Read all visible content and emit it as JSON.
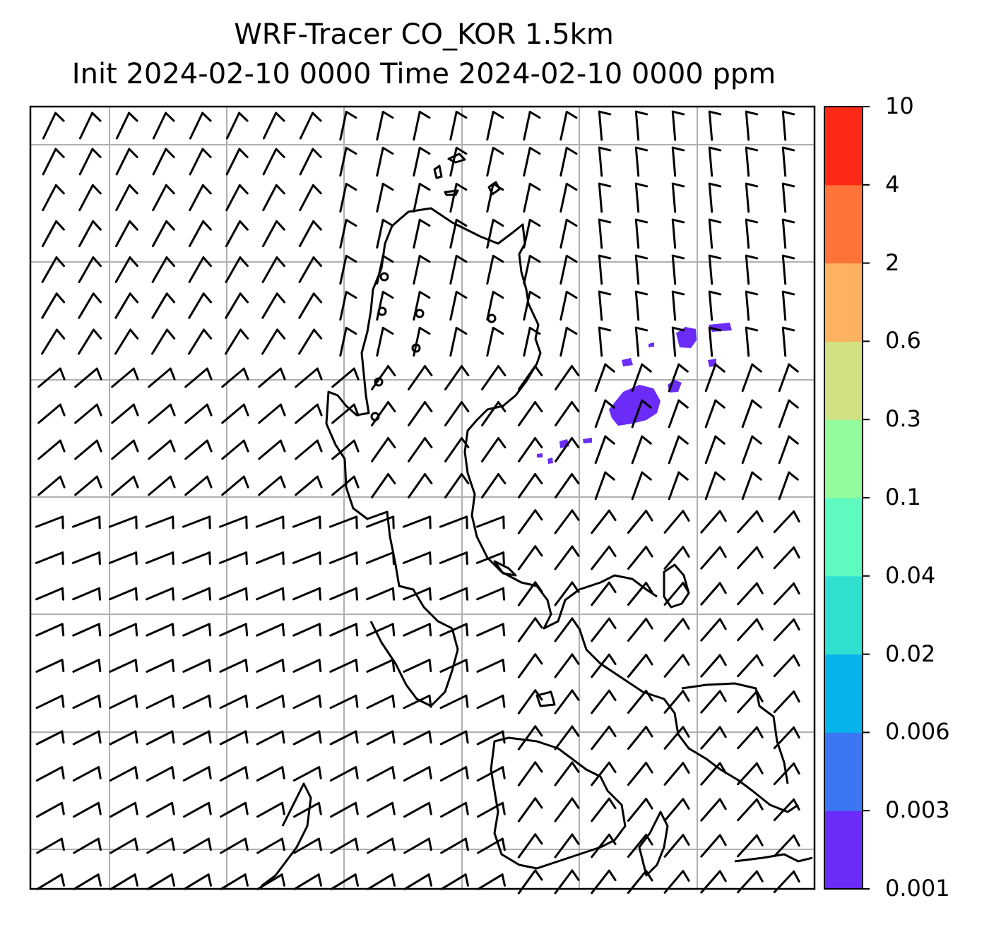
{
  "title": {
    "line1": "WRF-Tracer CO_KOR 1.5km",
    "line2": "Init 2024-02-10 0000 Time 2024-02-10 0000 ppm"
  },
  "colorbar": {
    "ticks": [
      "0.001",
      "0.003",
      "0.006",
      "0.02",
      "0.04",
      "0.1",
      "0.3",
      "0.6",
      "2",
      "4",
      "10"
    ],
    "colors": [
      "#6a2cf6",
      "#3b77f3",
      "#06b3ea",
      "#2fe0d1",
      "#5ffabf",
      "#94fc9c",
      "#d1e184",
      "#fdb262",
      "#fe7338",
      "#fe2a17"
    ]
  },
  "map": {
    "gridlines": true,
    "wind_barbs": true,
    "tracer_color": "#6a2cf6"
  }
}
